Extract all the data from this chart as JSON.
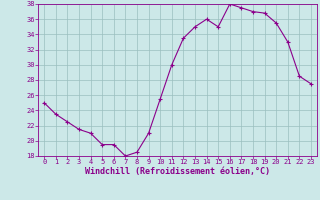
{
  "x": [
    0,
    1,
    2,
    3,
    4,
    5,
    6,
    7,
    8,
    9,
    10,
    11,
    12,
    13,
    14,
    15,
    16,
    17,
    18,
    19,
    20,
    21,
    22,
    23
  ],
  "y": [
    25.0,
    23.5,
    22.5,
    21.5,
    21.0,
    19.5,
    19.5,
    18.0,
    18.5,
    21.0,
    25.5,
    30.0,
    33.5,
    35.0,
    36.0,
    35.0,
    38.0,
    37.5,
    37.0,
    36.8,
    35.5,
    33.0,
    28.5,
    27.5
  ],
  "line_color": "#8b008b",
  "marker": "+",
  "marker_size": 3.5,
  "marker_lw": 0.8,
  "bg_color": "#cce8e8",
  "grid_color": "#9bbfbf",
  "xlabel": "Windchill (Refroidissement éolien,°C)",
  "xlabel_color": "#8b008b",
  "tick_color": "#8b008b",
  "ylim": [
    18,
    38
  ],
  "xlim": [
    -0.5,
    23.5
  ],
  "yticks": [
    18,
    20,
    22,
    24,
    26,
    28,
    30,
    32,
    34,
    36,
    38
  ],
  "xticks": [
    0,
    1,
    2,
    3,
    4,
    5,
    6,
    7,
    8,
    9,
    10,
    11,
    12,
    13,
    14,
    15,
    16,
    17,
    18,
    19,
    20,
    21,
    22,
    23
  ],
  "tick_fontsize": 5.0,
  "xlabel_fontsize": 6.0,
  "line_width": 0.8
}
